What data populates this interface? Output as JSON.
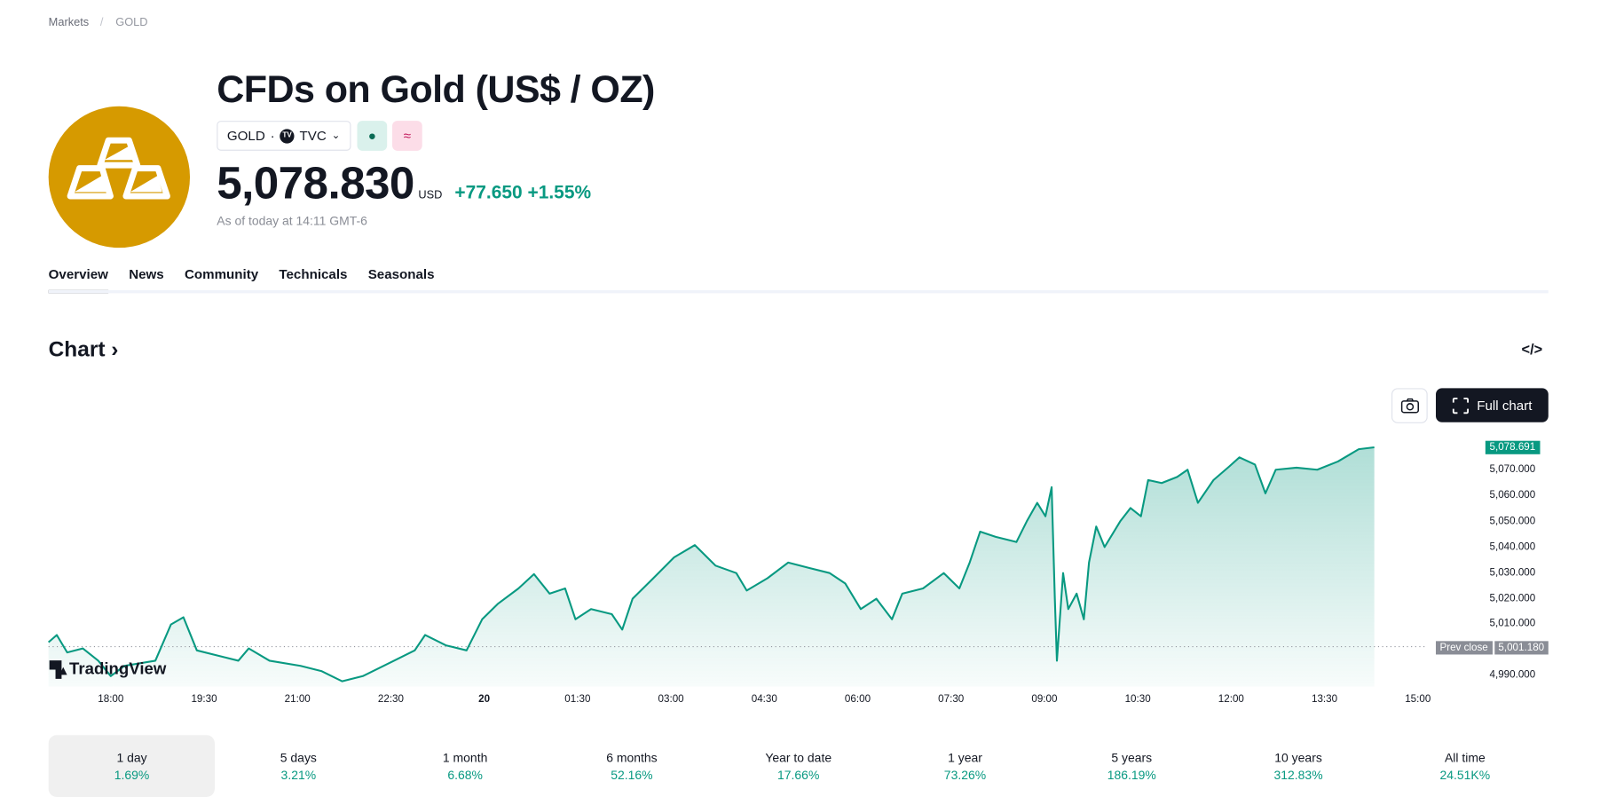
{
  "breadcrumb": {
    "items": [
      "Markets",
      "GOLD"
    ],
    "separator": "/"
  },
  "header": {
    "title": "CFDs on Gold (US$ / OZ)",
    "symbol": "GOLD",
    "exchange": "TVC",
    "exchange_icon": "TV",
    "market_status_icon": "●",
    "data_icon": "≈",
    "price": "5,078.830",
    "currency": "USD",
    "change": "+77.650",
    "change_pct": "+1.55%",
    "as_of": "As of today at 14:11 GMT-6"
  },
  "tabs": [
    "Overview",
    "News",
    "Community",
    "Technicals",
    "Seasonals"
  ],
  "chart_section": {
    "title": "Chart",
    "embed_icon": "</>",
    "full_chart_label": "Full chart",
    "watermark": "TradingView"
  },
  "colors": {
    "accent": "#089981",
    "logo": "#d69a00"
  },
  "chart_data": {
    "type": "area",
    "x_unit": "minutes since 17:00 (previous day)",
    "x": [
      0,
      8,
      18,
      33,
      48,
      60,
      73,
      103,
      118,
      130,
      143,
      163,
      183,
      193,
      213,
      243,
      263,
      283,
      303,
      333,
      353,
      363,
      383,
      403,
      418,
      433,
      453,
      468,
      483,
      498,
      508,
      523,
      543,
      553,
      563,
      583,
      603,
      623,
      643,
      663,
      673,
      693,
      713,
      733,
      753,
      768,
      783,
      798,
      813,
      823,
      843,
      863,
      878,
      888,
      898,
      913,
      933,
      943,
      953,
      961,
      967,
      970,
      972,
      978,
      983,
      991,
      998,
      1003,
      1010,
      1018,
      1033,
      1043,
      1053,
      1060,
      1073,
      1088,
      1098,
      1108,
      1123,
      1138,
      1148,
      1163,
      1173,
      1183,
      1203,
      1223,
      1243,
      1263,
      1278
    ],
    "y": [
      5002.9,
      5005.7,
      4998.9,
      5000.5,
      4995.7,
      4989.7,
      4993.7,
      4995.7,
      5009.8,
      5012.6,
      4999.7,
      4997.7,
      4995.7,
      5000.5,
      4995.7,
      4993.7,
      4991.7,
      4987.7,
      4989.7,
      4995.7,
      4999.7,
      5005.7,
      5001.7,
      4999.7,
      5011.8,
      5017.8,
      5023.8,
      5029.4,
      5021.8,
      5023.8,
      5011.8,
      5015.8,
      5013.8,
      5007.8,
      5019.8,
      5027.8,
      5035.9,
      5040.7,
      5032.7,
      5029.8,
      5023.0,
      5027.8,
      5033.9,
      5031.8,
      5029.8,
      5025.8,
      5015.8,
      5019.8,
      5011.8,
      5021.8,
      5023.8,
      5029.8,
      5023.8,
      5033.9,
      5045.9,
      5043.9,
      5041.9,
      5049.9,
      5057.1,
      5051.9,
      5063.2,
      5019.8,
      4995.7,
      5029.8,
      5015.8,
      5021.8,
      5011.8,
      5033.9,
      5047.9,
      5039.9,
      5049.9,
      5055.1,
      5051.9,
      5066.0,
      5064.8,
      5067.2,
      5070.0,
      5057.1,
      5066.0,
      5071.2,
      5074.8,
      5072.0,
      5060.8,
      5070.0,
      5070.8,
      5070.0,
      5073.2,
      5078.0,
      5078.7
    ],
    "x_ticks": [
      {
        "min": 60,
        "label": "18:00"
      },
      {
        "min": 150,
        "label": "19:30"
      },
      {
        "min": 240,
        "label": "21:00"
      },
      {
        "min": 330,
        "label": "22:30"
      },
      {
        "min": 420,
        "label": "20",
        "bold": true
      },
      {
        "min": 510,
        "label": "01:30"
      },
      {
        "min": 600,
        "label": "03:00"
      },
      {
        "min": 690,
        "label": "04:30"
      },
      {
        "min": 780,
        "label": "06:00"
      },
      {
        "min": 870,
        "label": "07:30"
      },
      {
        "min": 960,
        "label": "09:00"
      },
      {
        "min": 1050,
        "label": "10:30"
      },
      {
        "min": 1140,
        "label": "12:00"
      },
      {
        "min": 1230,
        "label": "13:30"
      },
      {
        "min": 1320,
        "label": "15:00"
      }
    ],
    "y_ticks": [
      {
        "v": 5070,
        "label": "5,070.000"
      },
      {
        "v": 5060,
        "label": "5,060.000"
      },
      {
        "v": 5050,
        "label": "5,050.000"
      },
      {
        "v": 5040,
        "label": "5,040.000"
      },
      {
        "v": 5030,
        "label": "5,030.000"
      },
      {
        "v": 5020,
        "label": "5,020.000"
      },
      {
        "v": 5010,
        "label": "5,010.000"
      },
      {
        "v": 4990,
        "label": "4,990.000"
      }
    ],
    "last_value": 5078.691,
    "last_label": "5,078.691",
    "prev_close": 5001.18,
    "prev_close_label": "5,001.180",
    "prev_close_text": "Prev close",
    "ylim": [
      4985,
      5085
    ],
    "xlim": [
      0,
      1440
    ]
  },
  "periods": [
    {
      "label": "1 day",
      "value": "1.69%"
    },
    {
      "label": "5 days",
      "value": "3.21%"
    },
    {
      "label": "1 month",
      "value": "6.68%"
    },
    {
      "label": "6 months",
      "value": "52.16%"
    },
    {
      "label": "Year to date",
      "value": "17.66%"
    },
    {
      "label": "1 year",
      "value": "73.26%"
    },
    {
      "label": "5 years",
      "value": "186.19%"
    },
    {
      "label": "10 years",
      "value": "312.83%"
    },
    {
      "label": "All time",
      "value": "24.51K%"
    }
  ]
}
